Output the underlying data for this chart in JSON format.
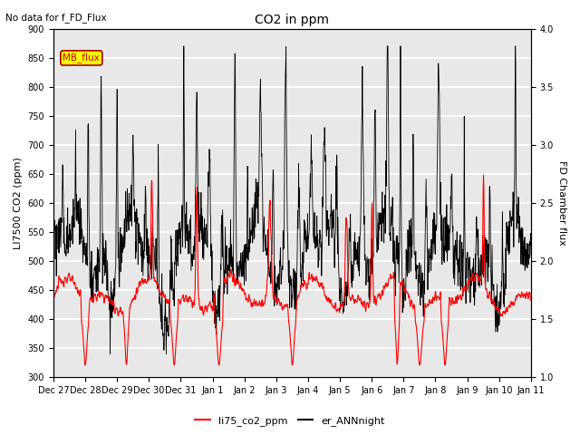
{
  "title": "CO2 in ppm",
  "top_text": "No data for f_FD_Flux",
  "ylabel_left": "LI7500 CO2 (ppm)",
  "ylabel_right": "FD Chamber flux",
  "ylim_left": [
    300,
    900
  ],
  "ylim_right": [
    1.0,
    4.0
  ],
  "yticks_left": [
    300,
    350,
    400,
    450,
    500,
    550,
    600,
    650,
    700,
    750,
    800,
    850,
    900
  ],
  "yticks_right": [
    1.0,
    1.5,
    2.0,
    2.5,
    3.0,
    3.5,
    4.0
  ],
  "xtick_labels": [
    "Dec 27",
    "Dec 28",
    "Dec 29",
    "Dec 30",
    "Dec 31",
    "Jan 1",
    "Jan 2",
    "Jan 3",
    "Jan 4",
    "Jan 5",
    "Jan 6",
    "Jan 7",
    "Jan 8",
    "Jan 9",
    "Jan 10",
    "Jan 11"
  ],
  "legend_entries": [
    "li75_co2_ppm",
    "er_ANNnight"
  ],
  "legend_colors": [
    "red",
    "black"
  ],
  "mb_flux_box_color": "#ffff00",
  "mb_flux_text_color": "#cc0000",
  "background_color": "#e8e8e8",
  "line_color_red": "#ff0000",
  "line_color_black": "#000000",
  "grid_color": "#ffffff",
  "figwidth": 6.4,
  "figheight": 4.8,
  "dpi": 100
}
